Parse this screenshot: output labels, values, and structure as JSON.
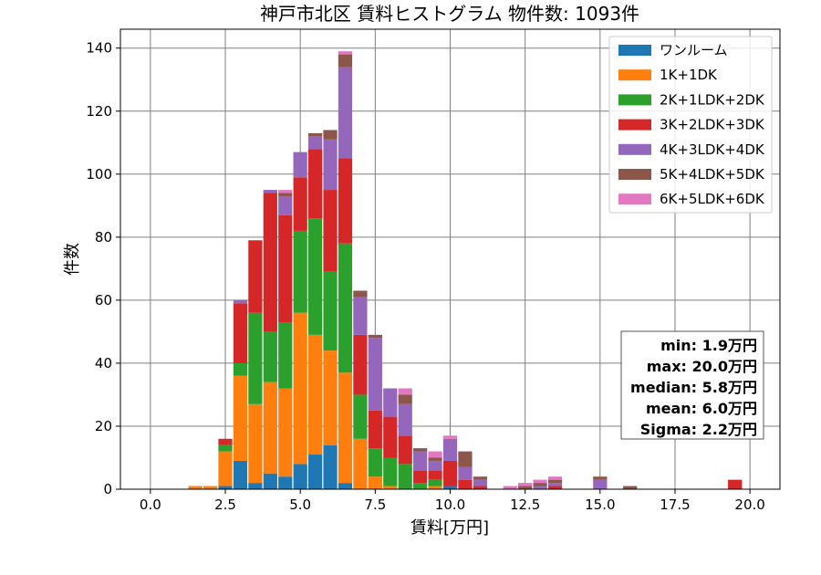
{
  "chart_data": {
    "type": "bar",
    "stacked": true,
    "title": "神戸市北区 賃料ヒストグラム 物件数: 1093件",
    "xlabel": "賃料[万円]",
    "ylabel": "件数",
    "xlim": [
      -1.0,
      21.0
    ],
    "ylim": [
      0,
      146
    ],
    "xticks": [
      "0.0",
      "2.5",
      "5.0",
      "7.5",
      "10.0",
      "12.5",
      "15.0",
      "17.5",
      "20.0"
    ],
    "yticks": [
      "0",
      "20",
      "40",
      "60",
      "80",
      "100",
      "120",
      "140"
    ],
    "grid": true,
    "legend_position": "top-right",
    "bin_width": 0.5,
    "x": [
      1.5,
      2.0,
      2.5,
      3.0,
      3.5,
      4.0,
      4.5,
      5.0,
      5.5,
      6.0,
      6.5,
      7.0,
      7.5,
      8.0,
      8.5,
      9.0,
      9.5,
      10.0,
      10.5,
      11.0,
      12.0,
      12.5,
      13.0,
      13.5,
      15.0,
      16.0,
      19.5
    ],
    "series": [
      {
        "name": "ワンルーム",
        "color": "#1f77b4",
        "values": [
          0,
          0,
          1,
          9,
          2,
          5,
          4,
          8,
          11,
          14,
          2,
          0,
          0,
          0,
          0,
          0,
          0,
          1,
          0,
          0,
          0,
          0,
          0,
          0,
          0,
          0,
          0
        ]
      },
      {
        "name": "1K+1DK",
        "color": "#ff7f0e",
        "values": [
          1,
          1,
          11,
          27,
          25,
          29,
          28,
          48,
          38,
          30,
          35,
          16,
          4,
          1,
          0,
          0,
          1,
          0,
          0,
          0,
          0,
          0,
          0,
          0,
          0,
          0,
          0
        ]
      },
      {
        "name": "2K+1LDK+2DK",
        "color": "#2ca02c",
        "values": [
          0,
          0,
          2,
          4,
          29,
          16,
          21,
          26,
          37,
          25,
          41,
          14,
          9,
          9,
          8,
          2,
          2,
          0,
          0,
          0,
          0,
          0,
          0,
          0,
          0,
          0,
          0
        ]
      },
      {
        "name": "3K+2LDK+3DK",
        "color": "#d62728",
        "values": [
          0,
          0,
          2,
          19,
          23,
          44,
          34,
          17,
          22,
          26,
          27,
          19,
          12,
          13,
          9,
          4,
          3,
          8,
          3,
          1,
          0,
          0,
          0,
          1,
          0,
          0,
          3
        ]
      },
      {
        "name": "4K+3LDK+4DK",
        "color": "#9467bd",
        "values": [
          0,
          0,
          0,
          1,
          0,
          1,
          6,
          8,
          4,
          16,
          29,
          12,
          23,
          9,
          10,
          6,
          3,
          7,
          4,
          2,
          0,
          0,
          1,
          1,
          3,
          0,
          0
        ]
      },
      {
        "name": "5K+4LDK+5DK",
        "color": "#8c564b",
        "values": [
          0,
          0,
          0,
          0,
          0,
          0,
          1,
          0,
          1,
          3,
          4,
          2,
          1,
          0,
          3,
          1,
          1,
          0,
          5,
          1,
          0,
          1,
          1,
          1,
          1,
          1,
          0
        ]
      },
      {
        "name": "6K+5LDK+6DK",
        "color": "#e377c2",
        "values": [
          0,
          0,
          0,
          0,
          0,
          0,
          1,
          0,
          0,
          0,
          1,
          0,
          0,
          0,
          2,
          0,
          2,
          1,
          0,
          0,
          1,
          1,
          1,
          1,
          0,
          0,
          0
        ]
      }
    ],
    "stats": [
      "min: 1.9万円",
      "max: 20.0万円",
      "median: 5.8万円",
      "mean: 6.0万円",
      "Sigma: 2.2万円"
    ]
  }
}
